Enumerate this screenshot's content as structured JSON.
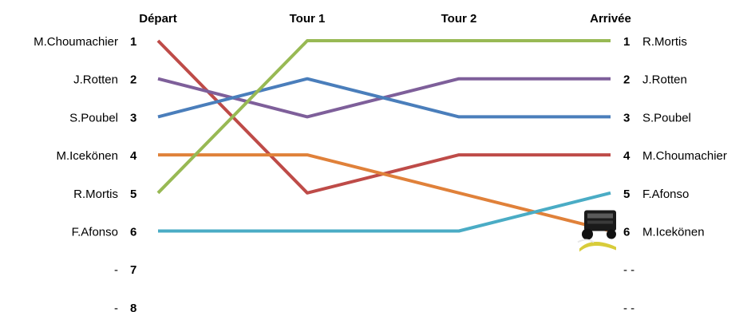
{
  "chart_data": {
    "type": "line",
    "categories": [
      "Départ",
      "Tour 1",
      "Tour 2",
      "Arrivée"
    ],
    "positions": [
      1,
      2,
      3,
      4,
      5,
      6,
      7,
      8
    ],
    "left_names": [
      "M.Choumachier",
      "J.Rotten",
      "S.Poubel",
      "M.Icekönen",
      "R.Mortis",
      "F.Afonso",
      "-",
      "-"
    ],
    "right_names": [
      "R.Mortis",
      "J.Rotten",
      "S.Poubel",
      "M.Choumachier",
      "F.Afonso",
      "M.Icekönen",
      "- -",
      "- -"
    ],
    "series": [
      {
        "name": "M.Choumachier",
        "color": "#be4b48",
        "values": [
          1,
          5,
          4,
          4
        ]
      },
      {
        "name": "J.Rotten",
        "color": "#7e5f9a",
        "values": [
          2,
          3,
          2,
          2
        ]
      },
      {
        "name": "S.Poubel",
        "color": "#4a7ebb",
        "values": [
          3,
          2,
          3,
          3
        ]
      },
      {
        "name": "M.Icekönen",
        "color": "#e0813a",
        "values": [
          4,
          4,
          5,
          6
        ]
      },
      {
        "name": "R.Mortis",
        "color": "#98b954",
        "values": [
          5,
          1,
          1,
          1
        ]
      },
      {
        "name": "F.Afonso",
        "color": "#4aacc5",
        "values": [
          6,
          6,
          6,
          5
        ]
      }
    ],
    "car_icon": "race-car-icon"
  }
}
